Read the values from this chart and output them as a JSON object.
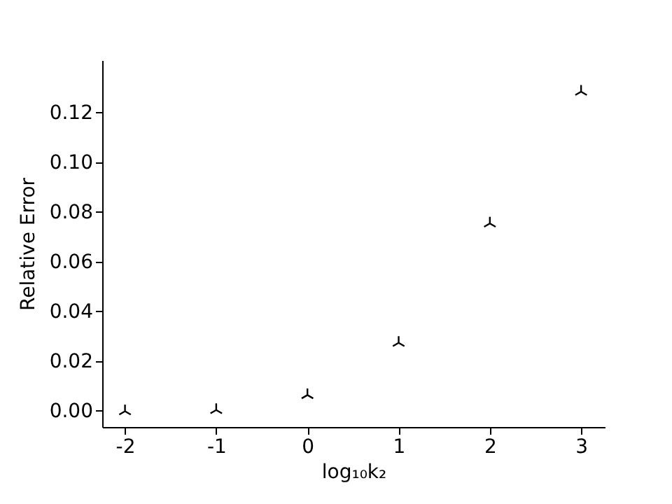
{
  "chart_data": {
    "type": "scatter",
    "xlabel": "log₁₀k₂",
    "ylabel": "Relative Error",
    "x": [
      -2,
      -1,
      0,
      1,
      2,
      3
    ],
    "series": [
      {
        "color": "#000000",
        "values": [
          0.0005,
          0.001,
          0.007,
          0.028,
          0.076,
          0.129
        ]
      }
    ],
    "xlim": [
      -2.25,
      3.26
    ],
    "xticks": [
      -2,
      -1,
      0,
      1,
      2,
      3
    ],
    "ylim": [
      -0.0065,
      0.141
    ],
    "yticks": [
      {
        "value": 0,
        "label": "0.00"
      },
      {
        "value": 0.02,
        "label": "0.02"
      },
      {
        "value": 0.04,
        "label": "0.04"
      },
      {
        "value": 0.06,
        "label": "0.06"
      },
      {
        "value": 0.08,
        "label": "0.08"
      },
      {
        "value": 0.1,
        "label": "0.10"
      },
      {
        "value": 0.12,
        "label": "0.12"
      }
    ],
    "grid": false,
    "legend": false,
    "marker": "cross"
  }
}
